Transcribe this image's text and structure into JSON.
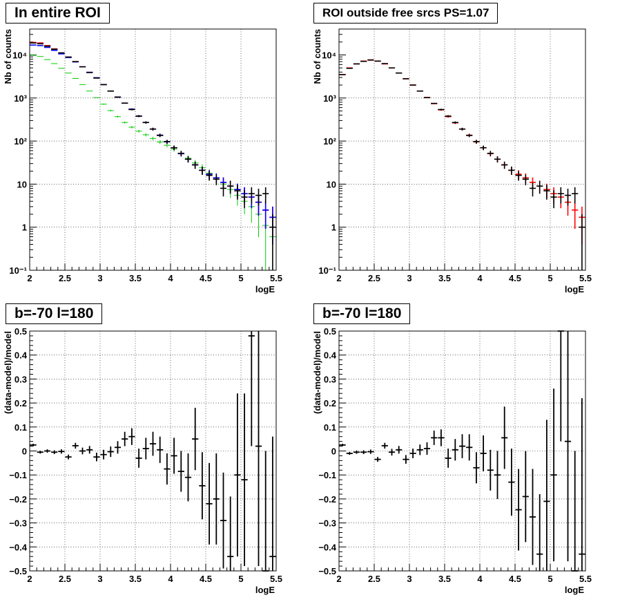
{
  "chart_data": [
    {
      "type": "line",
      "title": "In entire ROI",
      "xlabel": "logE",
      "ylabel": "Nb of counts",
      "yscale": "log",
      "xlim": [
        2,
        5.5
      ],
      "ylim": [
        0.1,
        40000
      ],
      "xticks": [
        "2",
        "2.5",
        "3",
        "3.5",
        "4",
        "4.5",
        "5",
        "5.5"
      ],
      "yticks": [
        "10⁻¹",
        "1",
        "10",
        "10²",
        "10³",
        "10⁴"
      ],
      "grid": true,
      "x": [
        2.05,
        2.15,
        2.25,
        2.35,
        2.45,
        2.55,
        2.65,
        2.75,
        2.85,
        2.95,
        3.05,
        3.15,
        3.25,
        3.35,
        3.45,
        3.55,
        3.65,
        3.75,
        3.85,
        3.95,
        4.05,
        4.15,
        4.25,
        4.35,
        4.45,
        4.55,
        4.65,
        4.75,
        4.85,
        4.95,
        5.05,
        5.15,
        5.25,
        5.35,
        5.45
      ],
      "series": [
        {
          "color": "#000000",
          "values": [
            19000,
            18200,
            16000,
            13600,
            11200,
            8950,
            7000,
            5300,
            3900,
            2900,
            2050,
            1450,
            1050,
            760,
            540,
            380,
            270,
            190,
            135,
            97,
            70,
            52,
            38,
            28,
            21,
            16,
            13,
            8,
            9,
            7,
            5,
            6,
            5.5,
            6,
            1
          ]
        },
        {
          "color": "#ff0000",
          "values": [
            19500,
            19000,
            16500,
            13800,
            11000,
            8900,
            7000,
            5300,
            3950,
            2950,
            2050,
            1450,
            1050,
            760,
            550,
            380,
            270,
            190,
            137,
            96,
            70,
            51,
            38,
            28,
            21,
            17,
            14,
            11,
            9,
            7.5,
            6,
            5,
            3.8,
            2.5,
            1.7
          ]
        },
        {
          "color": "#0000ff",
          "values": [
            17000,
            16500,
            15000,
            12800,
            10600,
            8700,
            6900,
            5300,
            3950,
            2950,
            2050,
            1450,
            1050,
            760,
            550,
            380,
            270,
            190,
            137,
            96,
            70,
            51,
            38,
            28,
            21,
            17,
            14,
            11,
            9,
            7.5,
            6,
            5,
            3.8,
            2.5,
            1.7
          ]
        },
        {
          "color": "#00cc00",
          "values": [
            9800,
            9200,
            7800,
            6300,
            4900,
            3800,
            2850,
            2050,
            1450,
            1020,
            720,
            510,
            370,
            270,
            210,
            170,
            140,
            115,
            95,
            80,
            65,
            52,
            40,
            31,
            24,
            18,
            14,
            10,
            7.5,
            5.5,
            4,
            3,
            2,
            1.1,
            0.6
          ]
        }
      ]
    },
    {
      "type": "line",
      "title": "ROI outside free srcs PS=1.07",
      "xlabel": "logE",
      "ylabel": "Nb of counts",
      "yscale": "log",
      "xlim": [
        2,
        5.5
      ],
      "ylim": [
        0.1,
        40000
      ],
      "xticks": [
        "2",
        "2.5",
        "3",
        "3.5",
        "4",
        "4.5",
        "5",
        "5.5"
      ],
      "yticks": [
        "10⁻¹",
        "1",
        "10",
        "10²",
        "10³",
        "10⁴"
      ],
      "grid": true,
      "x": [
        2.05,
        2.15,
        2.25,
        2.35,
        2.45,
        2.55,
        2.65,
        2.75,
        2.85,
        2.95,
        3.05,
        3.15,
        3.25,
        3.35,
        3.45,
        3.55,
        3.65,
        3.75,
        3.85,
        3.95,
        4.05,
        4.15,
        4.25,
        4.35,
        4.45,
        4.55,
        4.65,
        4.75,
        4.85,
        4.95,
        5.05,
        5.15,
        5.25,
        5.35,
        5.45
      ],
      "series": [
        {
          "color": "#000000",
          "values": [
            3500,
            4900,
            6200,
            7100,
            7600,
            7200,
            6300,
            5000,
            3800,
            2800,
            2000,
            1450,
            1020,
            750,
            540,
            380,
            270,
            190,
            135,
            97,
            70,
            52,
            38,
            28,
            21,
            16,
            13,
            8,
            9,
            7,
            5,
            6,
            5.5,
            6,
            1
          ]
        },
        {
          "color": "#ff0000",
          "values": [
            3500,
            5000,
            6200,
            7200,
            7700,
            7200,
            6200,
            5000,
            3800,
            2800,
            2000,
            1450,
            1030,
            740,
            530,
            370,
            265,
            190,
            137,
            96,
            70,
            51,
            38,
            28,
            21,
            17,
            14,
            11,
            9,
            7.5,
            6,
            5,
            3.8,
            2.5,
            1.7
          ]
        }
      ]
    },
    {
      "type": "scatter",
      "title": "b=-70 l=180",
      "xlabel": "logE",
      "ylabel": "(data-model)/model",
      "xlim": [
        2,
        5.5
      ],
      "ylim": [
        -0.5,
        0.5
      ],
      "xticks": [
        "2",
        "2.5",
        "3",
        "3.5",
        "4",
        "4.5",
        "5",
        "5.5"
      ],
      "yticks": [
        "−0.5",
        "−0.4",
        "−0.3",
        "−0.2",
        "−0.1",
        "0",
        "0.1",
        "0.2",
        "0.3",
        "0.4",
        "0.5"
      ],
      "grid": true,
      "x": [
        2.05,
        2.15,
        2.25,
        2.35,
        2.45,
        2.55,
        2.65,
        2.75,
        2.85,
        2.95,
        3.05,
        3.15,
        3.25,
        3.35,
        3.45,
        3.55,
        3.65,
        3.75,
        3.85,
        3.95,
        4.05,
        4.15,
        4.25,
        4.35,
        4.45,
        4.55,
        4.65,
        4.75,
        4.85,
        4.95,
        5.05,
        5.15,
        5.25,
        5.35,
        5.45
      ],
      "values": [
        0.025,
        -0.005,
        0.0,
        -0.005,
        -0.002,
        -0.025,
        0.022,
        0.0,
        0.005,
        -0.025,
        -0.015,
        -0.003,
        0.015,
        0.05,
        0.06,
        -0.03,
        0.01,
        0.03,
        0.005,
        -0.075,
        -0.02,
        -0.085,
        -0.11,
        0.05,
        -0.145,
        -0.22,
        -0.2,
        -0.29,
        -0.44,
        -0.1,
        -0.12,
        0.48,
        0.02,
        -0.5,
        -0.44
      ],
      "errors": [
        0.005,
        0.006,
        0.007,
        0.008,
        0.009,
        0.01,
        0.012,
        0.014,
        0.016,
        0.018,
        0.02,
        0.022,
        0.026,
        0.03,
        0.035,
        0.04,
        0.045,
        0.05,
        0.055,
        0.065,
        0.075,
        0.085,
        0.1,
        0.13,
        0.14,
        0.17,
        0.19,
        0.2,
        0.25,
        0.34,
        0.36,
        0.46,
        0.5,
        0.5,
        0.5
      ],
      "series_color": "#000000"
    },
    {
      "type": "scatter",
      "title": "b=-70 l=180",
      "xlabel": "logE",
      "ylabel": "(data-model)/model",
      "xlim": [
        2,
        5.5
      ],
      "ylim": [
        -0.5,
        0.5
      ],
      "xticks": [
        "2",
        "2.5",
        "3",
        "3.5",
        "4",
        "4.5",
        "5",
        "5.5"
      ],
      "yticks": [
        "−0.5",
        "−0.4",
        "−0.3",
        "−0.2",
        "−0.1",
        "0",
        "0.1",
        "0.2",
        "0.3",
        "0.4",
        "0.5"
      ],
      "grid": true,
      "x": [
        2.05,
        2.15,
        2.25,
        2.35,
        2.45,
        2.55,
        2.65,
        2.75,
        2.85,
        2.95,
        3.05,
        3.15,
        3.25,
        3.35,
        3.45,
        3.55,
        3.65,
        3.75,
        3.85,
        3.95,
        4.05,
        4.15,
        4.25,
        4.35,
        4.45,
        4.55,
        4.65,
        4.75,
        4.85,
        4.95,
        5.05,
        5.15,
        5.25,
        5.35,
        5.45
      ],
      "values": [
        0.025,
        -0.01,
        -0.005,
        -0.005,
        -0.003,
        -0.035,
        0.022,
        -0.005,
        0.005,
        -0.035,
        -0.01,
        0.005,
        0.01,
        0.055,
        0.055,
        -0.03,
        0.005,
        0.02,
        0.015,
        -0.07,
        -0.01,
        -0.08,
        -0.1,
        0.055,
        -0.13,
        -0.245,
        -0.19,
        -0.275,
        -0.43,
        -0.21,
        -0.1,
        0.5,
        0.04,
        -0.5,
        -0.43
      ],
      "errors": [
        0.005,
        0.006,
        0.007,
        0.008,
        0.009,
        0.01,
        0.012,
        0.014,
        0.016,
        0.018,
        0.02,
        0.022,
        0.026,
        0.03,
        0.035,
        0.04,
        0.045,
        0.05,
        0.055,
        0.065,
        0.075,
        0.085,
        0.1,
        0.13,
        0.14,
        0.17,
        0.19,
        0.2,
        0.25,
        0.34,
        0.36,
        0.46,
        0.5,
        0.5,
        0.65
      ],
      "series_color": "#000000"
    }
  ]
}
